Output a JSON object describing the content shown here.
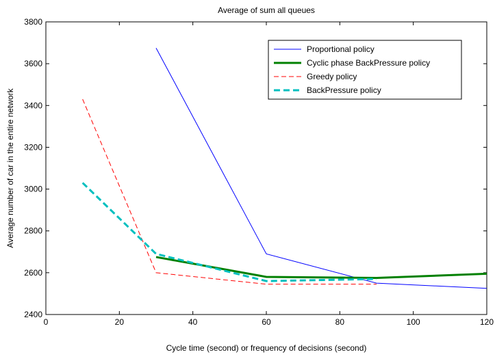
{
  "chart_data": {
    "type": "line",
    "title": "Average of sum all queues",
    "xlabel": "Cycle time (second) or frequency of decisions (second)",
    "ylabel": "Average number of car in the entire network",
    "xlim": [
      0,
      120
    ],
    "ylim": [
      2400,
      3800
    ],
    "xticks": [
      0,
      20,
      40,
      60,
      80,
      100,
      120
    ],
    "yticks": [
      2400,
      2600,
      2800,
      3000,
      3200,
      3400,
      3600,
      3800
    ],
    "grid": false,
    "legend_position": "top-right",
    "series": [
      {
        "name": "Proportional policy",
        "color": "#0000ff",
        "style": "solid",
        "width": 1,
        "points": [
          [
            30,
            3675
          ],
          [
            60,
            2690
          ],
          [
            90,
            2550
          ],
          [
            120,
            2525
          ]
        ]
      },
      {
        "name": "Cyclic phase BackPressure policy",
        "color": "#008000",
        "style": "solid",
        "width": 3,
        "points": [
          [
            30,
            2675
          ],
          [
            60,
            2580
          ],
          [
            90,
            2575
          ],
          [
            120,
            2595
          ]
        ]
      },
      {
        "name": "Greedy policy",
        "color": "#ff0000",
        "style": "dashed",
        "width": 1,
        "points": [
          [
            10,
            3430
          ],
          [
            30,
            2600
          ],
          [
            60,
            2545
          ],
          [
            90,
            2545
          ]
        ]
      },
      {
        "name": "BackPressure policy",
        "color": "#00bfbf",
        "style": "dashed",
        "width": 3,
        "points": [
          [
            10,
            3030
          ],
          [
            30,
            2690
          ],
          [
            60,
            2560
          ],
          [
            90,
            2570
          ]
        ]
      }
    ]
  }
}
